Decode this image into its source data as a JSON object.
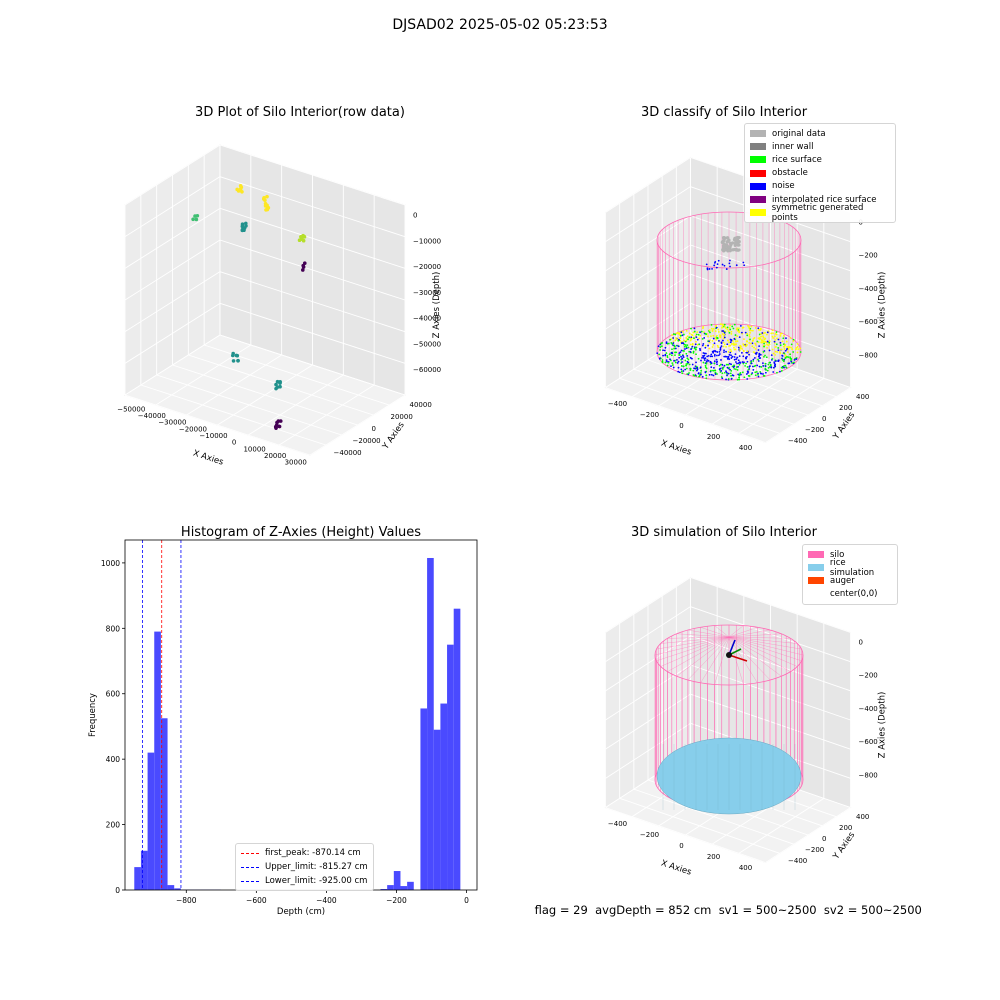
{
  "figure": {
    "title": "DJSAD02 2025-05-02 05:23:53",
    "status": {
      "flag": "flag = 29",
      "avg_depth": "avgDepth = 852 cm",
      "sv1": "sv1 = 500~2500",
      "sv2": "sv2 = 500~2500"
    }
  },
  "colors": {
    "original": "#b3b3b3",
    "inner_wall": "#808080",
    "rice_surface": "#00ff00",
    "obstacle": "#ff0000",
    "noise": "#0000ff",
    "interpolated": "#800080",
    "symmetric": "#ffff00",
    "silo": "#ff69b4",
    "rice_sim": "#87ceeb",
    "auger": "#ff4500",
    "hist_bar": "#4a4aff"
  },
  "chart_data": [
    {
      "type": "scatter3d",
      "title": "3D Plot of Silo Interior(row data)",
      "xlabel": "X Axies",
      "ylabel": "Y Axies",
      "zlabel": "Z Axies (Depth)",
      "xticks": [
        "−50000",
        "−40000",
        "−30000",
        "−20000",
        "−10000",
        "0",
        "10000",
        "20000",
        "30000"
      ],
      "yticks": [
        "−40000",
        "−20000",
        "0",
        "20000",
        "40000"
      ],
      "zticks": [
        "0",
        "−10000",
        "−20000",
        "−30000",
        "−40000",
        "−50000",
        "−60000"
      ],
      "clusters": [
        {
          "x": -48000,
          "y": 30000,
          "z": -18000
        },
        {
          "x": -30000,
          "y": 38000,
          "z": -5000
        },
        {
          "x": -22000,
          "y": 25000,
          "z": -14000
        },
        {
          "x": -15000,
          "y": 32000,
          "z": -4000
        },
        {
          "x": -8000,
          "y": 20000,
          "z": -2000
        },
        {
          "x": 5000,
          "y": 28000,
          "z": -12000
        },
        {
          "x": 15000,
          "y": 10000,
          "z": -16000
        },
        {
          "x": -5000,
          "y": -20000,
          "z": -48000
        },
        {
          "x": 20000,
          "y": -30000,
          "z": -50000
        },
        {
          "x": 25000,
          "y": -40000,
          "z": -61000
        }
      ]
    },
    {
      "type": "scatter3d",
      "title": "3D classify of Silo Interior",
      "xlabel": "X Axies",
      "ylabel": "Y Axies",
      "zlabel": "Z Axies (Depth)",
      "xticks": [
        "−400",
        "−200",
        "0",
        "200",
        "400"
      ],
      "yticks": [
        "−400",
        "−200",
        "0",
        "200",
        "400"
      ],
      "zticks": [
        "0",
        "−200",
        "−400",
        "−600",
        "−800"
      ],
      "legend": [
        {
          "label": "original data",
          "color": "#b3b3b3"
        },
        {
          "label": "inner wall",
          "color": "#808080"
        },
        {
          "label": "rice surface",
          "color": "#00ff00"
        },
        {
          "label": "obstacle",
          "color": "#ff0000"
        },
        {
          "label": "noise",
          "color": "#0000ff"
        },
        {
          "label": "interpolated rice surface",
          "color": "#800080"
        },
        {
          "label": "symmetric generated points",
          "color": "#ffff00"
        }
      ],
      "silo_radius": 420,
      "silo_height": 950
    },
    {
      "type": "bar",
      "title": "Histogram of Z-Axies (Height) Values",
      "xlabel": "Depth (cm)",
      "ylabel": "Frequency",
      "xlim": [
        -975,
        30
      ],
      "ylim": [
        0,
        1070
      ],
      "xticks": [
        -800,
        -600,
        -400,
        -200,
        0
      ],
      "xtick_labels": [
        "−800",
        "−600",
        "−400",
        "−200",
        "0"
      ],
      "yticks": [
        0,
        200,
        400,
        600,
        800,
        1000
      ],
      "bin_width": 19,
      "bins": [
        {
          "x": -939,
          "v": 70
        },
        {
          "x": -920,
          "v": 120
        },
        {
          "x": -901,
          "v": 420
        },
        {
          "x": -882,
          "v": 790
        },
        {
          "x": -863,
          "v": 525
        },
        {
          "x": -844,
          "v": 15
        },
        {
          "x": -825,
          "v": 5
        },
        {
          "x": -806,
          "v": 1
        },
        {
          "x": -787,
          "v": 1
        },
        {
          "x": -768,
          "v": 1
        },
        {
          "x": -749,
          "v": 1
        },
        {
          "x": -730,
          "v": 1
        },
        {
          "x": -711,
          "v": 1
        },
        {
          "x": -692,
          "v": 0
        },
        {
          "x": -673,
          "v": 0
        },
        {
          "x": -654,
          "v": 0
        },
        {
          "x": -635,
          "v": 0
        },
        {
          "x": -616,
          "v": 0
        },
        {
          "x": -597,
          "v": 0
        },
        {
          "x": -578,
          "v": 0
        },
        {
          "x": -559,
          "v": 0
        },
        {
          "x": -540,
          "v": 0
        },
        {
          "x": -521,
          "v": 0
        },
        {
          "x": -502,
          "v": 0
        },
        {
          "x": -483,
          "v": 0
        },
        {
          "x": -464,
          "v": 0
        },
        {
          "x": -445,
          "v": 0
        },
        {
          "x": -426,
          "v": 0
        },
        {
          "x": -407,
          "v": 0
        },
        {
          "x": -388,
          "v": 0
        },
        {
          "x": -369,
          "v": 0
        },
        {
          "x": -350,
          "v": 0
        },
        {
          "x": -331,
          "v": 0
        },
        {
          "x": -312,
          "v": 0
        },
        {
          "x": -293,
          "v": 0
        },
        {
          "x": -274,
          "v": 0
        },
        {
          "x": -255,
          "v": 0
        },
        {
          "x": -236,
          "v": 3
        },
        {
          "x": -217,
          "v": 15
        },
        {
          "x": -198,
          "v": 58
        },
        {
          "x": -179,
          "v": 12
        },
        {
          "x": -160,
          "v": 25
        },
        {
          "x": -141,
          "v": 0
        },
        {
          "x": -122,
          "v": 555
        },
        {
          "x": -103,
          "v": 1015
        },
        {
          "x": -84,
          "v": 490
        },
        {
          "x": -65,
          "v": 570
        },
        {
          "x": -46,
          "v": 750
        },
        {
          "x": -27,
          "v": 860
        }
      ],
      "vlines": [
        {
          "label": "first_peak: -870.14 cm",
          "x": -870.14,
          "color": "#ff0000"
        },
        {
          "label": "Upper_limit: -815.27 cm",
          "x": -815.27,
          "color": "#0000ff"
        },
        {
          "label": "Lower_limit: -925.00 cm",
          "x": -925.0,
          "color": "#0000ff"
        }
      ]
    },
    {
      "type": "surface3d",
      "title": "3D simulation of Silo Interior",
      "xlabel": "X Axies",
      "ylabel": "Y Axies",
      "zlabel": "Z Axies (Depth)",
      "xticks": [
        "−400",
        "−200",
        "0",
        "200",
        "400"
      ],
      "yticks": [
        "−400",
        "−200",
        "0",
        "200",
        "400"
      ],
      "zticks": [
        "0",
        "−200",
        "−400",
        "−600",
        "−800"
      ],
      "legend": [
        {
          "label": "silo",
          "color": "#ff69b4"
        },
        {
          "label": "rice simulation",
          "color": "#87ceeb"
        },
        {
          "label": "auger",
          "color": "#ff4500"
        },
        {
          "label": "center(0,0)",
          "color": ""
        }
      ],
      "rice_depth": -852
    }
  ]
}
